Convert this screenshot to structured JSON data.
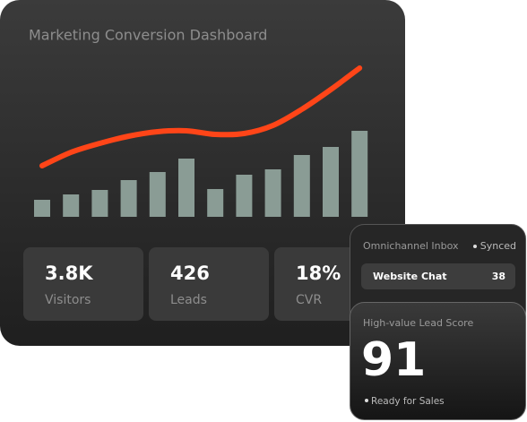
{
  "title": "Marketing Conversion Dashboard",
  "chart_data": [
    {
      "type": "bar",
      "values": [
        19,
        25,
        30,
        41,
        50,
        65,
        31,
        47,
        53,
        69,
        78,
        96
      ],
      "color": "#8a9c95"
    },
    {
      "type": "line",
      "values": [
        57,
        72,
        82,
        90,
        95,
        96,
        92,
        93,
        102,
        120,
        142,
        166
      ],
      "color": "#ff4518"
    }
  ],
  "stats": [
    {
      "value": "3.8K",
      "label": "Visitors"
    },
    {
      "value": "426",
      "label": "Leads"
    },
    {
      "value": "18%",
      "label": "CVR"
    }
  ],
  "inbox": {
    "title": "Omnichannel Inbox",
    "status": "Synced",
    "items": [
      {
        "label": "Website Chat",
        "count": 38
      }
    ]
  },
  "score": {
    "title": "High-value Lead Score",
    "value": 91,
    "status": "Ready for Sales"
  }
}
